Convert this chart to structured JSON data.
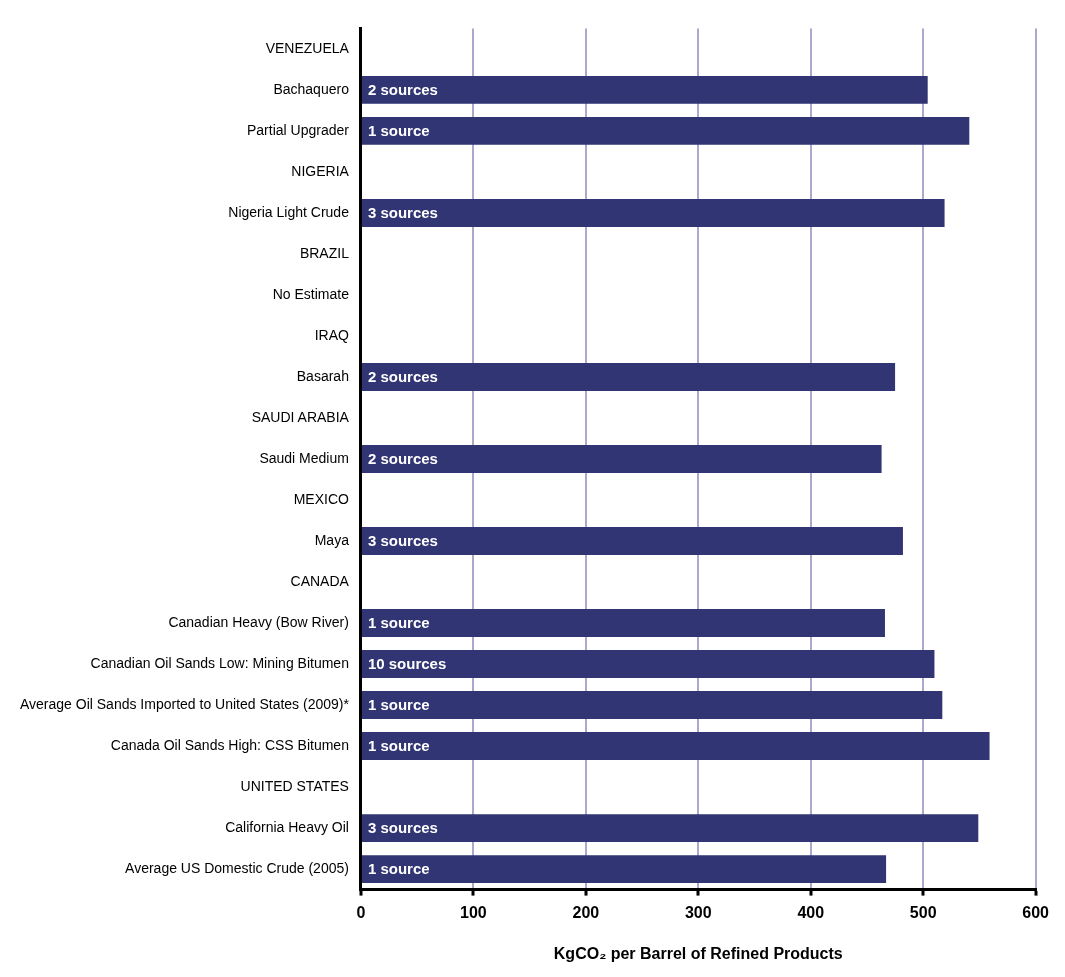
{
  "chart_data": {
    "type": "bar",
    "orientation": "horizontal",
    "xlabel": "KgCO₂ per Barrel of Refined Products",
    "categories": [
      "VENEZUELA",
      "Bachaquero",
      "Partial Upgrader",
      "NIGERIA",
      "Nigeria Light Crude",
      "BRAZIL",
      "No Estimate",
      "IRAQ",
      "Basarah",
      "SAUDI ARABIA",
      "Saudi Medium",
      "MEXICO",
      "Maya",
      "CANADA",
      "Canadian Heavy (Bow River)",
      "Canadian Oil Sands Low: Mining Bitumen",
      "Average Oil Sands Imported to United States (2009)*",
      "Canada Oil Sands High: CSS Bitumen",
      "UNITED STATES",
      "California Heavy Oil",
      "Average US Domestic Crude (2005)"
    ],
    "values": [
      null,
      504,
      541,
      null,
      519,
      null,
      null,
      null,
      475,
      null,
      463,
      null,
      482,
      null,
      466,
      510,
      517,
      559,
      null,
      549,
      467
    ],
    "annotations": [
      {
        "text": "2 sources",
        "y": "Bachaquero"
      },
      {
        "text": "1 source",
        "y": "Partial Upgrader"
      },
      {
        "text": "3 sources",
        "y": "Nigeria Light Crude"
      },
      {
        "text": "2 sources",
        "y": "Basarah"
      },
      {
        "text": "2 sources",
        "y": "Saudi Medium"
      },
      {
        "text": "3 sources",
        "y": "Maya"
      },
      {
        "text": "1 source",
        "y": "Canadian Heavy (Bow River)"
      },
      {
        "text": "10 sources",
        "y": "Canadian Oil Sands Low: Mining Bitumen"
      },
      {
        "text": "1 source",
        "y": "Average Oil Sands Imported to United States (2009)*"
      },
      {
        "text": "1 source",
        "y": "Canada Oil Sands High: CSS Bitumen"
      },
      {
        "text": "3 sources",
        "y": "California Heavy Oil"
      },
      {
        "text": "1 source",
        "y": "Average US Domestic Crude (2005)"
      }
    ],
    "color": "#313573",
    "xlim": [
      0,
      600
    ],
    "xticks": [
      0,
      100,
      200,
      300,
      400,
      500,
      600
    ],
    "grid": "x",
    "legend": false
  }
}
